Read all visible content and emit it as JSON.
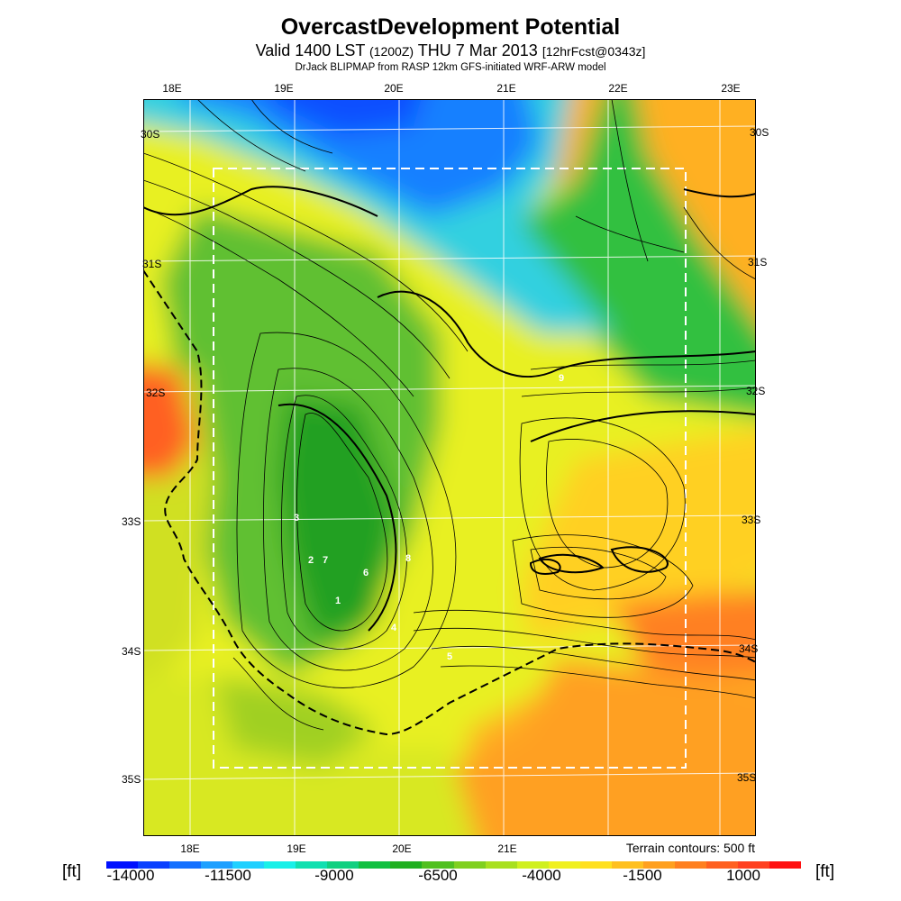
{
  "header": {
    "title": "OvercastDevelopment Potential",
    "valid_prefix": "Valid 1400 LST",
    "valid_utc": "(1200Z)",
    "valid_date": "THU 7 Mar 2013",
    "forecast": "[12hrFcst@0343z]",
    "model_line": "DrJack BLIPMAP from RASP 12km GFS-initiated WRF-ARW model"
  },
  "map": {
    "lon_labels_top": [
      "18E",
      "19E",
      "20E",
      "21E",
      "22E",
      "23E"
    ],
    "lon_labels_bottom": [
      "18E",
      "19E",
      "20E",
      "21E"
    ],
    "lat_labels_left": [
      "30S",
      "31S",
      "32S",
      "33S",
      "34S",
      "35S"
    ],
    "lat_labels_right": [
      "30S",
      "31S",
      "32S",
      "33S",
      "34S",
      "35S"
    ],
    "point_labels": [
      "9",
      "3",
      "2",
      "7",
      "6",
      "8",
      "1",
      "4",
      "5"
    ],
    "terrain_note": "Terrain contours: 500 ft"
  },
  "colorbar": {
    "unit_left": "[ft]",
    "unit_right": "[ft]",
    "ticks": [
      "-14000",
      "-11500",
      "-9000",
      "-6500",
      "-4000",
      "-1500",
      "1000"
    ],
    "colors": [
      "#0010ff",
      "#0a40ff",
      "#1470ff",
      "#1ea0ff",
      "#20d0ff",
      "#18f0e8",
      "#10e0b0",
      "#10d080",
      "#10c040",
      "#20b020",
      "#50c020",
      "#80d020",
      "#a8e020",
      "#d0f020",
      "#f0f020",
      "#ffe020",
      "#ffc020",
      "#ffa020",
      "#ff8020",
      "#ff6020",
      "#ff4020",
      "#ff1010"
    ]
  }
}
